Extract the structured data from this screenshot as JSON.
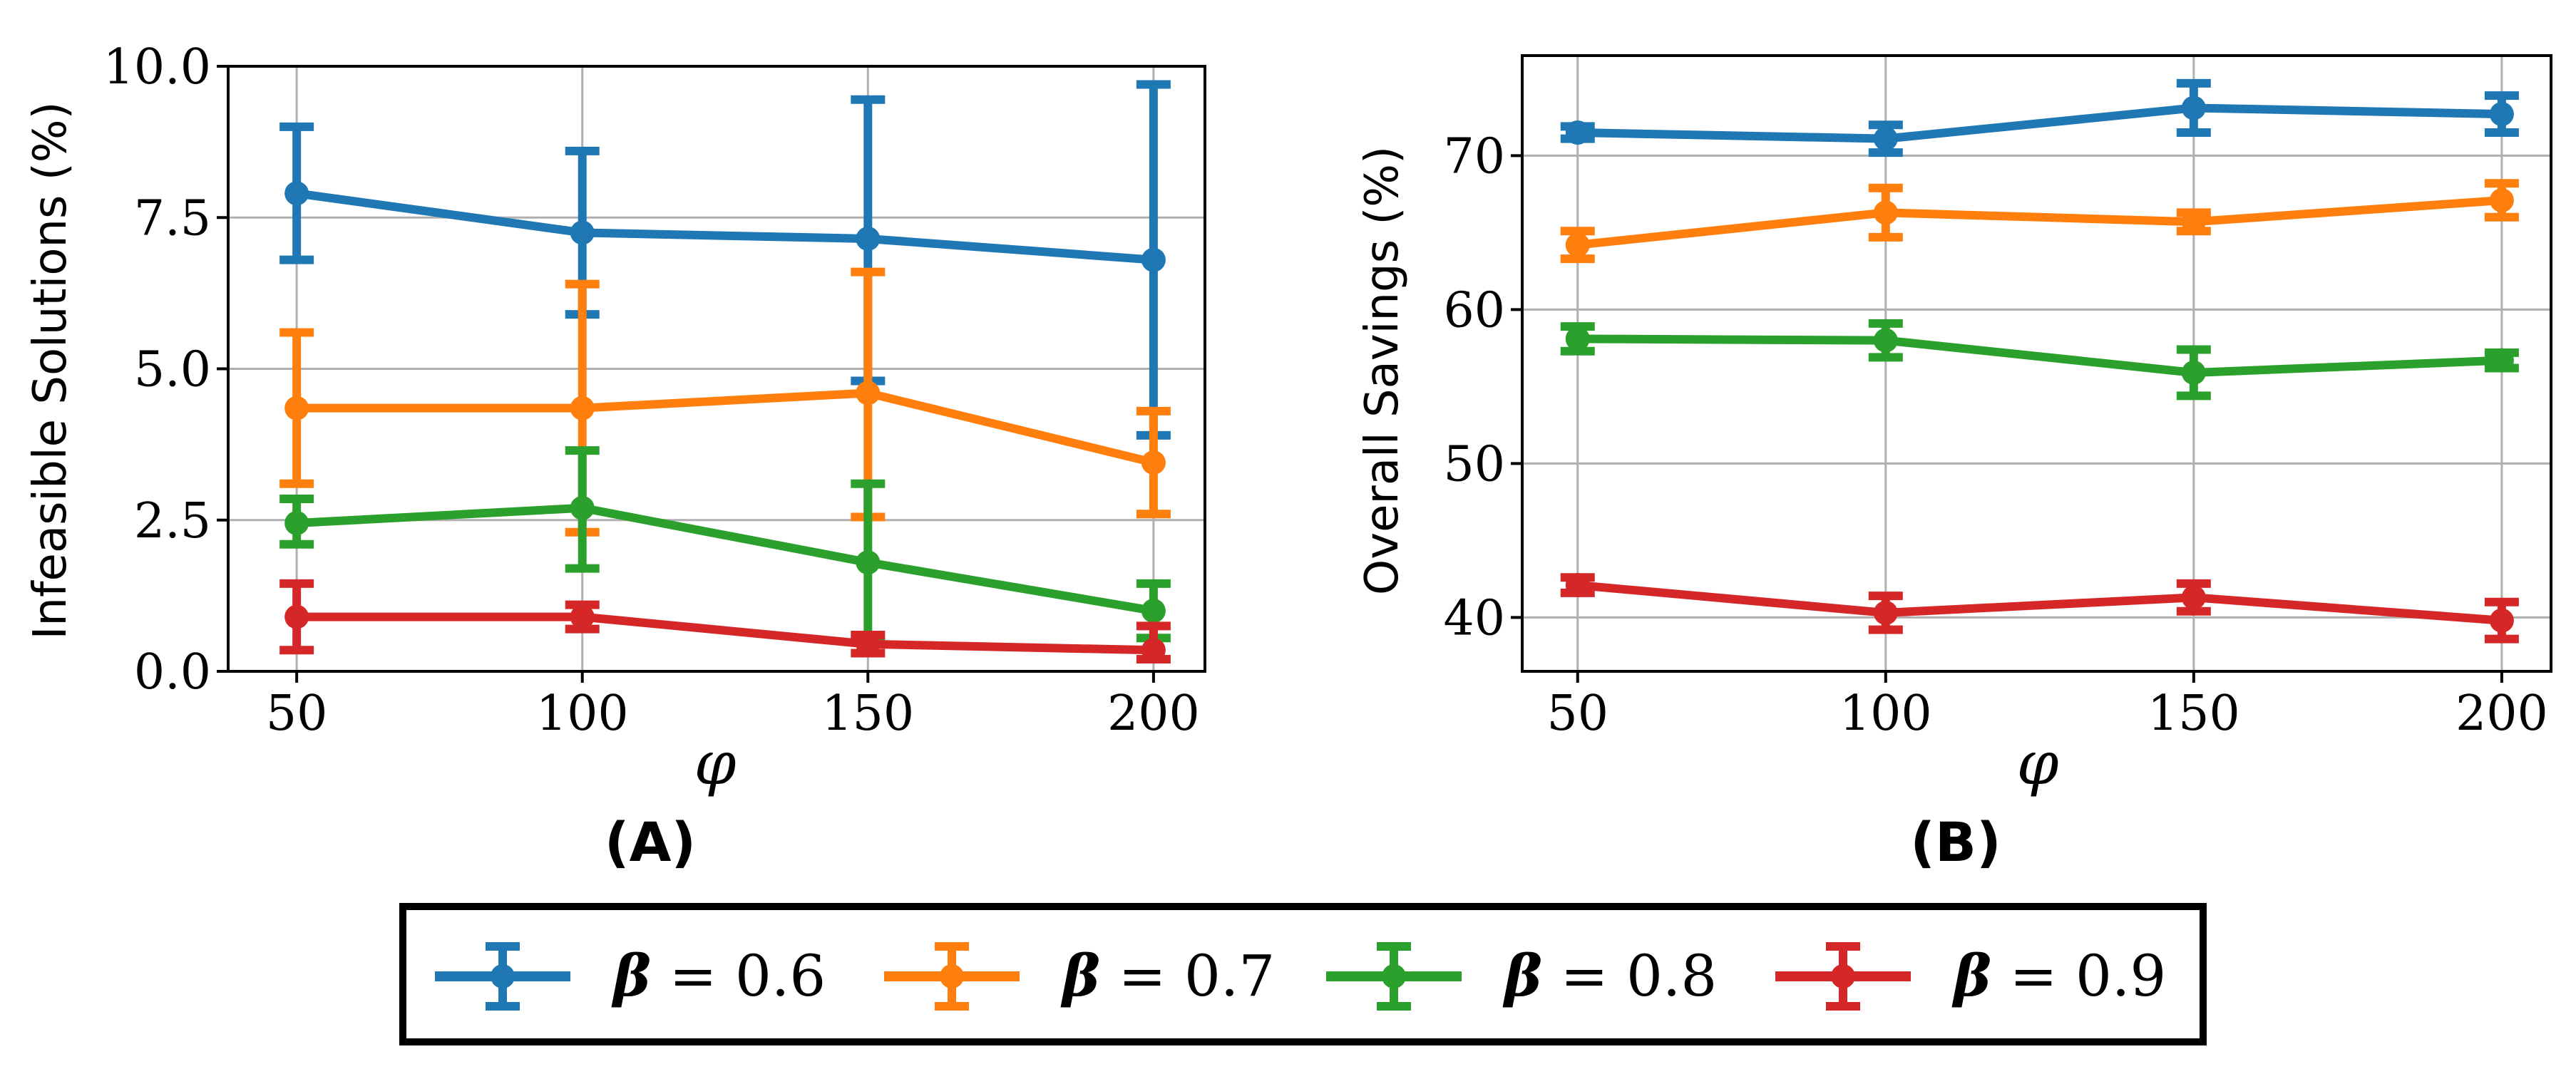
{
  "chart_data": [
    {
      "type": "line",
      "panel_label": "(A)",
      "xlabel": "φ",
      "ylabel": "Infeasible Solutions (%)",
      "x": [
        50,
        100,
        150,
        200
      ],
      "x_ticks": [
        "50",
        "100",
        "150",
        "200"
      ],
      "ylim": [
        0,
        10
      ],
      "y_ticks": [
        "0.0",
        "2.5",
        "5.0",
        "7.5",
        "10.0"
      ],
      "y_tick_values": [
        0,
        2.5,
        5,
        7.5,
        10
      ],
      "grid": true,
      "series": [
        {
          "name": "β = 0.6",
          "values": [
            7.9,
            7.25,
            7.15,
            6.8
          ],
          "err_low": [
            6.8,
            5.9,
            4.8,
            3.9
          ],
          "err_high": [
            9.0,
            8.6,
            9.45,
            9.7
          ]
        },
        {
          "name": "β = 0.7",
          "values": [
            4.35,
            4.35,
            4.6,
            3.45
          ],
          "err_low": [
            3.1,
            2.3,
            2.55,
            2.6
          ],
          "err_high": [
            5.6,
            6.4,
            6.6,
            4.3
          ]
        },
        {
          "name": "β = 0.8",
          "values": [
            2.45,
            2.7,
            1.8,
            1.0
          ],
          "err_low": [
            2.1,
            1.7,
            0.5,
            0.55
          ],
          "err_high": [
            2.85,
            3.65,
            3.1,
            1.45
          ]
        },
        {
          "name": "β = 0.9",
          "values": [
            0.9,
            0.9,
            0.45,
            0.35
          ],
          "err_low": [
            0.35,
            0.7,
            0.3,
            0.2
          ],
          "err_high": [
            1.45,
            1.1,
            0.6,
            0.75
          ]
        }
      ]
    },
    {
      "type": "line",
      "panel_label": "(B)",
      "xlabel": "φ",
      "ylabel": "Overall Savings (%)",
      "x": [
        50,
        100,
        150,
        200
      ],
      "x_ticks": [
        "50",
        "100",
        "150",
        "200"
      ],
      "ylim": [
        36.5,
        76.5
      ],
      "y_ticks": [
        "40",
        "50",
        "60",
        "70"
      ],
      "y_tick_values": [
        40,
        50,
        60,
        70
      ],
      "grid": true,
      "series": [
        {
          "name": "β = 0.6",
          "values": [
            71.5,
            71.1,
            73.1,
            72.7
          ],
          "err_low": [
            71.1,
            70.2,
            71.5,
            71.5
          ],
          "err_high": [
            71.9,
            72.0,
            74.7,
            73.9
          ]
        },
        {
          "name": "β = 0.7",
          "values": [
            64.2,
            66.3,
            65.7,
            67.1
          ],
          "err_low": [
            63.3,
            64.7,
            65.1,
            66.0
          ],
          "err_high": [
            65.1,
            67.9,
            66.3,
            68.2
          ]
        },
        {
          "name": "β = 0.8",
          "values": [
            58.1,
            58.0,
            55.9,
            56.7
          ],
          "err_low": [
            57.3,
            56.9,
            54.4,
            56.2
          ],
          "err_high": [
            58.9,
            59.1,
            57.4,
            57.2
          ]
        },
        {
          "name": "β = 0.9",
          "values": [
            42.1,
            40.3,
            41.3,
            39.8
          ],
          "err_low": [
            41.6,
            39.2,
            40.4,
            38.6
          ],
          "err_high": [
            42.6,
            41.4,
            42.2,
            41.0
          ]
        }
      ]
    }
  ],
  "legend": {
    "placement": "bottom-center",
    "entries": [
      {
        "symbol": "β",
        "text": "= 0.6"
      },
      {
        "symbol": "β",
        "text": "= 0.7"
      },
      {
        "symbol": "β",
        "text": "= 0.8"
      },
      {
        "symbol": "β",
        "text": "= 0.9"
      }
    ]
  },
  "colors": {
    "series": [
      "#1f77b4",
      "#ff7f0e",
      "#2ca02c",
      "#d62728"
    ],
    "grid": "#b0b0b0",
    "frame": "#000000"
  }
}
